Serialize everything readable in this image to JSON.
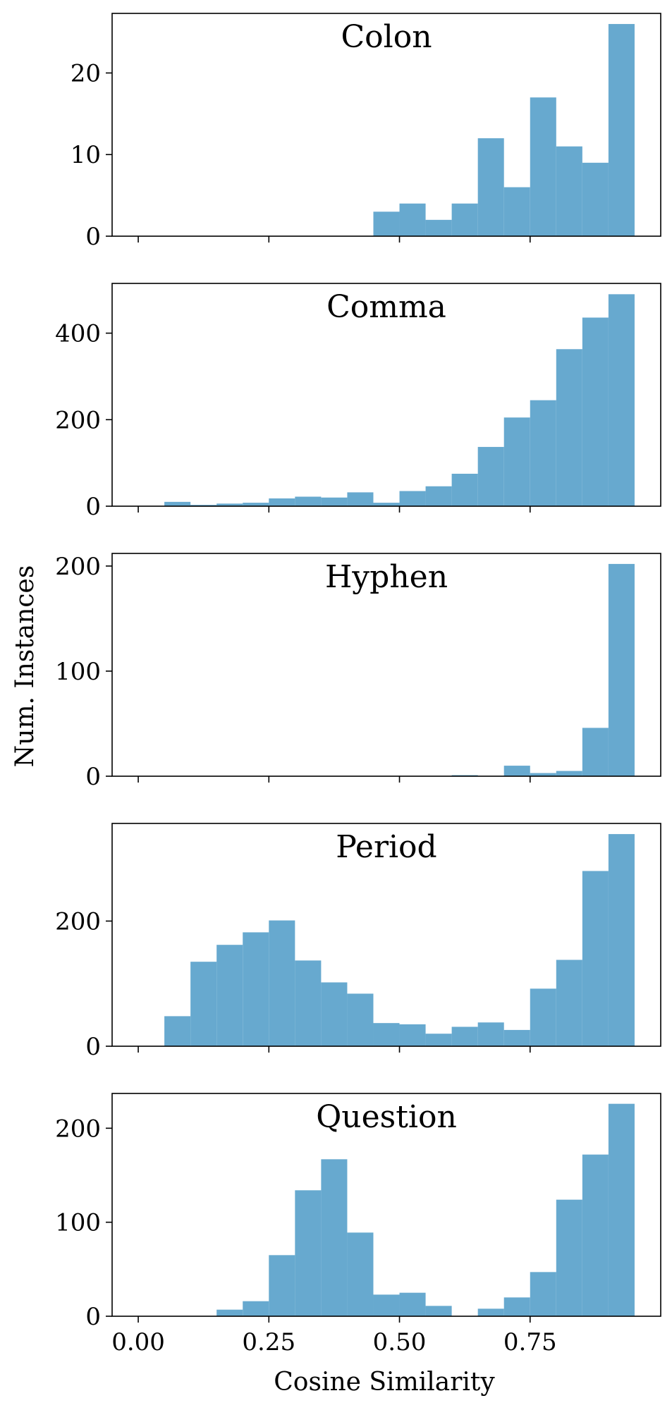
{
  "chart_data": {
    "type": "bar",
    "layout": "stacked-subplots",
    "shared_x": true,
    "xlabel": "Cosine Similarity",
    "ylabel": "Num. Instances",
    "xlim": [
      -0.05,
      1.0
    ],
    "xticks": [
      0.0,
      0.25,
      0.5,
      0.75
    ],
    "xtick_labels": [
      "0.00",
      "0.25",
      "0.50",
      "0.75"
    ],
    "bin_width": 0.05,
    "bin_starts": [
      0.0,
      0.05,
      0.1,
      0.15,
      0.2,
      0.25,
      0.3,
      0.35,
      0.4,
      0.45,
      0.5,
      0.55,
      0.6,
      0.65,
      0.7,
      0.75,
      0.8,
      0.85,
      0.9
    ],
    "bar_color": "#67a9cf",
    "panels": [
      {
        "title": "Colon",
        "ylim": [
          0,
          27.3
        ],
        "yticks": [
          0,
          10,
          20
        ],
        "values": [
          0,
          0,
          0,
          0,
          0,
          0,
          0,
          0,
          0,
          3,
          4,
          2,
          4,
          12,
          6,
          17,
          11,
          9,
          26
        ]
      },
      {
        "title": "Comma",
        "ylim": [
          0,
          515
        ],
        "yticks": [
          0,
          200,
          400
        ],
        "values": [
          0,
          10,
          3,
          6,
          8,
          18,
          22,
          20,
          32,
          8,
          35,
          46,
          75,
          137,
          205,
          245,
          363,
          436,
          490
        ]
      },
      {
        "title": "Hyphen",
        "ylim": [
          0,
          212
        ],
        "yticks": [
          0,
          100,
          200
        ],
        "values": [
          0,
          0,
          0,
          0,
          0,
          0,
          0,
          0,
          0,
          0,
          0,
          0,
          1,
          0,
          10,
          3,
          5,
          46,
          202
        ]
      },
      {
        "title": "Period",
        "ylim": [
          0,
          356
        ],
        "yticks": [
          0,
          200
        ],
        "values": [
          0,
          48,
          135,
          162,
          182,
          201,
          137,
          102,
          84,
          37,
          35,
          20,
          31,
          38,
          26,
          92,
          138,
          280,
          339
        ]
      },
      {
        "title": "Question",
        "ylim": [
          0,
          237
        ],
        "yticks": [
          0,
          100,
          200
        ],
        "values": [
          0,
          0,
          0,
          7,
          16,
          65,
          134,
          167,
          89,
          23,
          25,
          11,
          0,
          8,
          20,
          47,
          124,
          172,
          226
        ]
      }
    ]
  }
}
